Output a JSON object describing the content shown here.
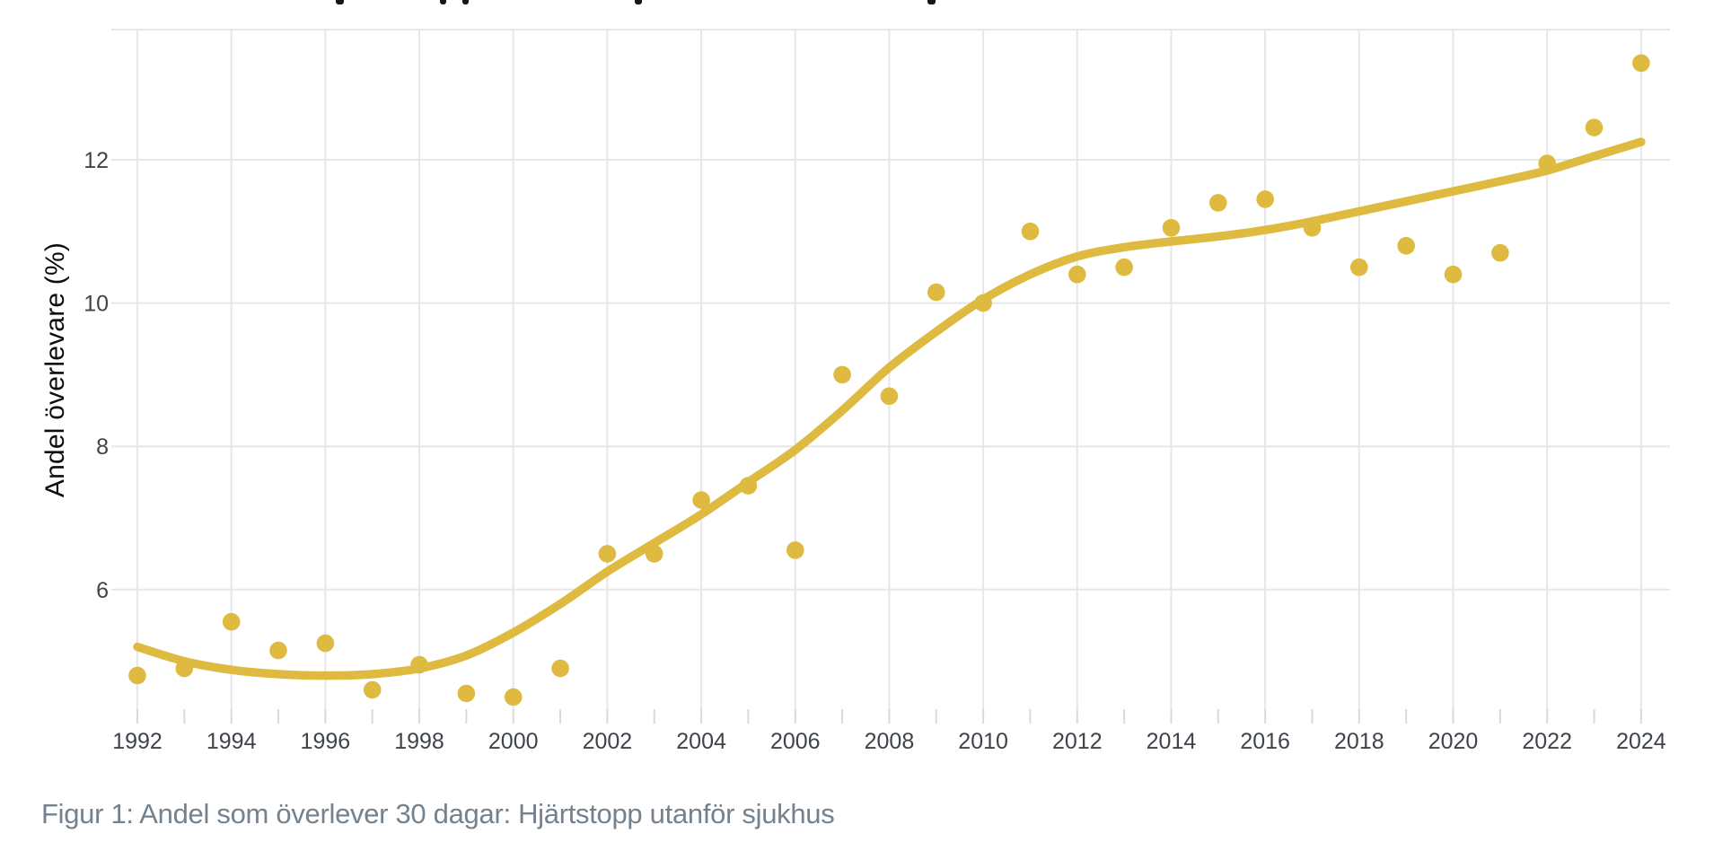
{
  "caption": {
    "text": "Figur 1: Andel som överlever 30 dagar: Hjärtstopp utanför sjukhus"
  },
  "chart_data": {
    "type": "scatter",
    "title": "",
    "xlabel": "",
    "ylabel": "Andel överlevare (%)",
    "years": [
      1992,
      1993,
      1994,
      1995,
      1996,
      1997,
      1998,
      1999,
      2000,
      2001,
      2002,
      2003,
      2004,
      2005,
      2006,
      2007,
      2008,
      2009,
      2010,
      2011,
      2012,
      2013,
      2014,
      2015,
      2016,
      2017,
      2018,
      2019,
      2020,
      2021,
      2022,
      2023,
      2024
    ],
    "x_tick_labels": [
      1992,
      1994,
      1996,
      1998,
      2000,
      2002,
      2004,
      2006,
      2008,
      2010,
      2012,
      2014,
      2016,
      2018,
      2020,
      2022,
      2024
    ],
    "y_tick_labels": [
      6,
      8,
      10,
      12
    ],
    "xlim": [
      1991.5,
      2024.6
    ],
    "ylim": [
      4.35,
      13.85
    ],
    "grid": {
      "vertical_gridlines": "every 2 years",
      "horizontal_gridlines": "every 2 units",
      "minor_x_ticks": "every year",
      "grid_on": true
    },
    "legend": "none",
    "series": [
      {
        "name": "observations",
        "type": "scatter",
        "values": [
          4.8,
          4.9,
          5.55,
          5.15,
          5.25,
          4.6,
          4.95,
          4.55,
          4.5,
          4.9,
          6.5,
          6.5,
          7.25,
          7.45,
          6.55,
          9.0,
          8.7,
          10.15,
          10.0,
          11.0,
          10.4,
          10.5,
          11.05,
          11.4,
          11.45,
          11.05,
          10.5,
          10.8,
          10.4,
          10.7,
          11.95,
          12.45,
          13.35
        ]
      },
      {
        "name": "trend",
        "type": "line",
        "values": [
          5.2,
          5.0,
          4.88,
          4.82,
          4.8,
          4.82,
          4.9,
          5.08,
          5.4,
          5.8,
          6.25,
          6.65,
          7.05,
          7.5,
          7.95,
          8.5,
          9.1,
          9.6,
          10.05,
          10.4,
          10.65,
          10.78,
          10.86,
          10.93,
          11.02,
          11.14,
          11.28,
          11.42,
          11.56,
          11.7,
          11.85,
          12.05,
          12.25
        ]
      }
    ],
    "colors": {
      "accent": "#deba40",
      "grid": "#e7e7e7",
      "tick": "#d9d9d9",
      "tick_label": "#3f444a",
      "axis_title": "#0c0c0c",
      "caption": "#73828e",
      "background": "#ffffff"
    }
  }
}
